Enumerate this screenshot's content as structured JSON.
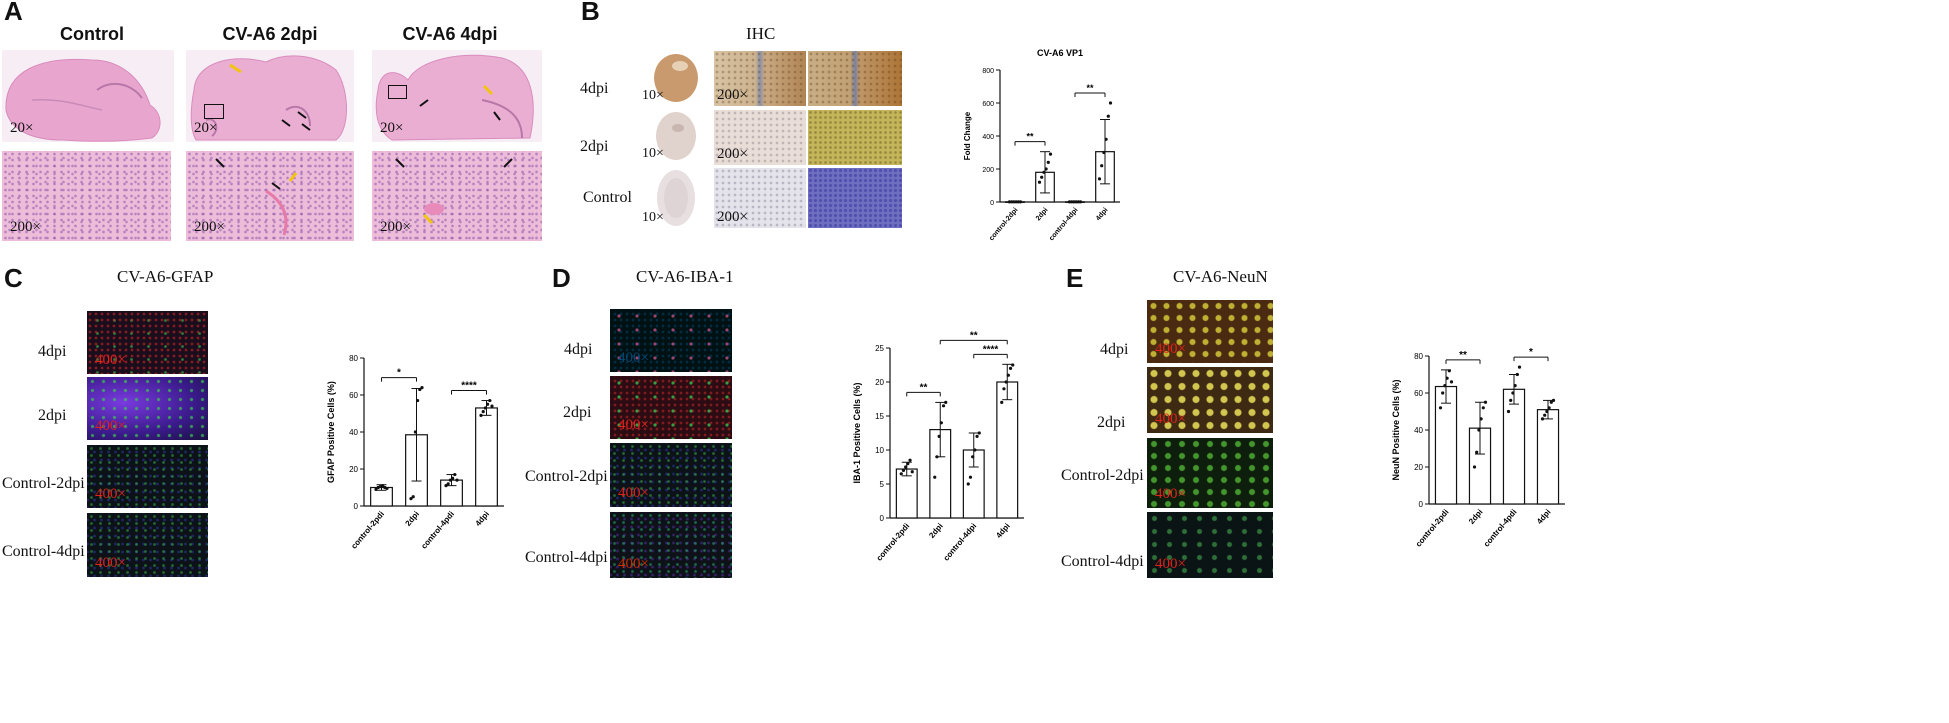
{
  "panels": {
    "A": {
      "letter": "A",
      "col_titles": [
        "Control",
        "CV-A6 2dpi",
        "CV-A6 4dpi"
      ],
      "low_mag": "20×",
      "high_mag": "200×"
    },
    "B": {
      "letter": "B",
      "title": "IHC",
      "rows": [
        "4dpi",
        "2dpi",
        "Control"
      ],
      "low_mag": "10×",
      "high_mag": "200×"
    },
    "C": {
      "letter": "C",
      "title": "CV-A6-GFAP",
      "rows": [
        "4dpi",
        "2dpi",
        "Control-2dpi",
        "Control-4dpi"
      ],
      "mag": "400×"
    },
    "D": {
      "letter": "D",
      "title": "CV-A6-IBA-1",
      "rows": [
        "4dpi",
        "2dpi",
        "Control-2dpi",
        "Control-4dpi"
      ],
      "mag": "400×"
    },
    "E": {
      "letter": "E",
      "title": "CV-A6-NeuN",
      "rows": [
        "4dpi",
        "2dpi",
        "Control-2dpi",
        "Control-4dpi"
      ],
      "mag": "400×"
    }
  },
  "chart_data": [
    {
      "id": "B",
      "type": "bar",
      "title": "CV-A6 VP1",
      "ylabel": "Fold Change",
      "categories": [
        "control-2dpi",
        "2dpi",
        "control-4dpi",
        "4dpi"
      ],
      "values": [
        1,
        180,
        1,
        305
      ],
      "errors": [
        1,
        125,
        1,
        195
      ],
      "points": [
        [
          1,
          1,
          1,
          1,
          1,
          1
        ],
        [
          120,
          150,
          180,
          200,
          240,
          290
        ],
        [
          1,
          1,
          1,
          1,
          1,
          1
        ],
        [
          140,
          220,
          300,
          380,
          520,
          600
        ]
      ],
      "ylim": [
        0,
        800
      ],
      "yticks": [
        0,
        200,
        400,
        600,
        800
      ],
      "significance": [
        {
          "from": 0,
          "to": 1,
          "label": "**"
        },
        {
          "from": 2,
          "to": 3,
          "label": "**"
        }
      ]
    },
    {
      "id": "C",
      "type": "bar",
      "ylabel": "GFAP Positive Cells (%)",
      "categories": [
        "control-2pdi",
        "2dpi",
        "control-4pdi",
        "4dpi"
      ],
      "values": [
        10,
        38.5,
        14,
        53
      ],
      "errors": [
        1.5,
        25,
        3,
        4
      ],
      "points": [
        [
          9,
          10,
          10.5,
          11,
          10,
          9.5
        ],
        [
          4,
          5,
          40,
          57,
          63,
          64
        ],
        [
          11,
          12,
          14,
          15,
          17,
          14
        ],
        [
          49,
          51,
          53,
          55,
          57,
          54
        ]
      ],
      "ylim": [
        0,
        80
      ],
      "yticks": [
        0,
        20,
        40,
        60,
        80
      ],
      "significance": [
        {
          "from": 0,
          "to": 1,
          "label": "*"
        },
        {
          "from": 2,
          "to": 3,
          "label": "****"
        }
      ]
    },
    {
      "id": "D",
      "type": "bar",
      "ylabel": "IBA-1 Positive Cells (%)",
      "categories": [
        "control-2pdi",
        "2dpi",
        "control-4dpi",
        "4dpi"
      ],
      "values": [
        7.2,
        13,
        10,
        20
      ],
      "errors": [
        1,
        4,
        2.5,
        2.6
      ],
      "points": [
        [
          6.5,
          7,
          7.5,
          8,
          8.5,
          6.8
        ],
        [
          6,
          9,
          12,
          14,
          16.5,
          17
        ],
        [
          5,
          6,
          9,
          10,
          12,
          12.5
        ],
        [
          17,
          19,
          20,
          21,
          22,
          22.5
        ]
      ],
      "ylim": [
        0,
        25
      ],
      "yticks": [
        0,
        5,
        10,
        15,
        20,
        25
      ],
      "significance": [
        {
          "from": 0,
          "to": 1,
          "label": "**"
        },
        {
          "from": 2,
          "to": 3,
          "label": "****"
        },
        {
          "from": 1,
          "to": 3,
          "label": "**"
        }
      ]
    },
    {
      "id": "E",
      "type": "bar",
      "ylabel": "NeuN Positive Cells (%)",
      "categories": [
        "control-2pdi",
        "2dpi",
        "control-4pdi",
        "4dpi"
      ],
      "values": [
        63.5,
        41,
        62,
        51
      ],
      "errors": [
        9,
        14,
        8,
        5
      ],
      "points": [
        [
          52,
          60,
          64,
          68,
          72,
          66
        ],
        [
          20,
          28,
          40,
          46,
          52,
          55
        ],
        [
          50,
          56,
          60,
          64,
          70,
          74
        ],
        [
          46,
          48,
          50,
          52,
          55,
          56
        ]
      ],
      "ylim": [
        0,
        80
      ],
      "yticks": [
        0,
        20,
        40,
        60,
        80
      ],
      "significance": [
        {
          "from": 0,
          "to": 1,
          "label": "**"
        },
        {
          "from": 2,
          "to": 3,
          "label": "*"
        }
      ]
    }
  ]
}
